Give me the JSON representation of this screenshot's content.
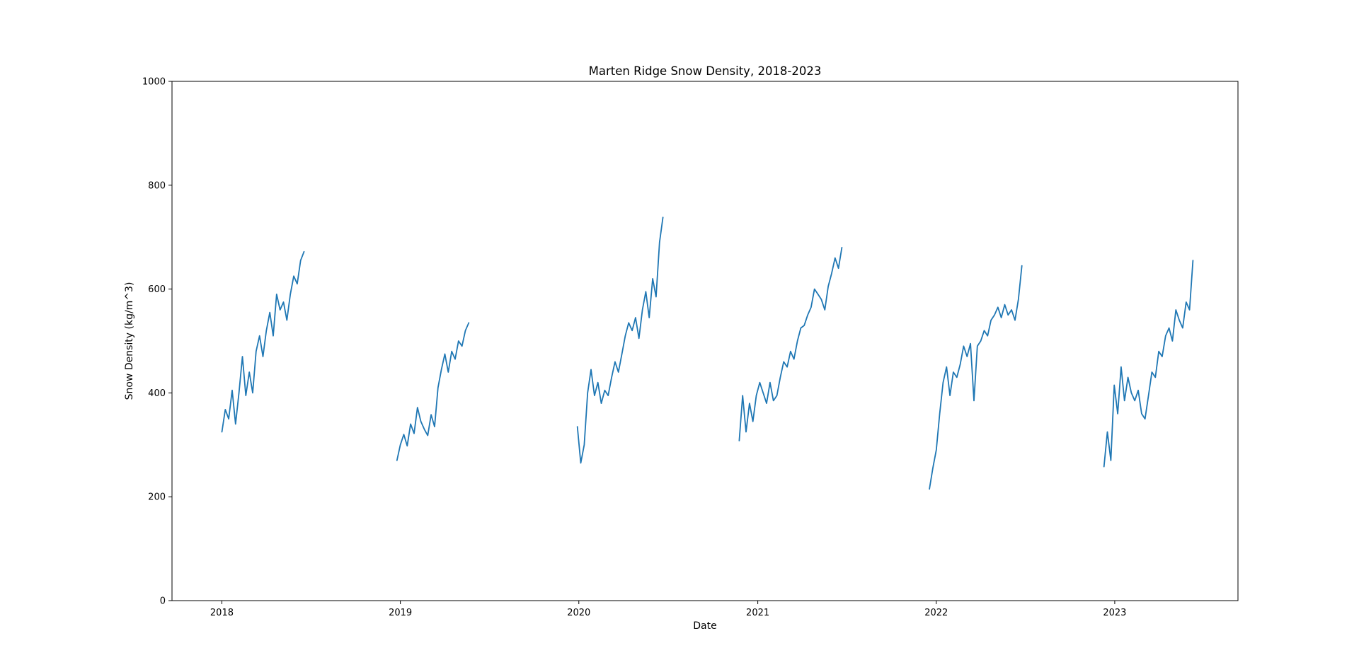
{
  "chart_data": {
    "type": "line",
    "title": "Marten Ridge Snow Density, 2018-2023",
    "xlabel": "Date",
    "ylabel": "Snow Density (kg/m^3)",
    "x_axis_kind": "date",
    "xlim": [
      "2017-09-21",
      "2023-09-10"
    ],
    "ylim": [
      0,
      1000
    ],
    "yticks": [
      0,
      200,
      400,
      600,
      800,
      1000
    ],
    "xticks": [
      {
        "date": "2018-01-01",
        "label": "2018"
      },
      {
        "date": "2019-01-01",
        "label": "2019"
      },
      {
        "date": "2020-01-01",
        "label": "2020"
      },
      {
        "date": "2021-01-01",
        "label": "2021"
      },
      {
        "date": "2022-01-01",
        "label": "2022"
      },
      {
        "date": "2023-01-01",
        "label": "2023"
      }
    ],
    "grid": false,
    "legend": "none",
    "color": "#1f77b4",
    "series": [
      {
        "x": [
          "2018-01-01",
          "2018-01-08",
          "2018-01-15",
          "2018-01-22",
          "2018-01-29",
          "2018-02-05",
          "2018-02-12",
          "2018-02-19",
          "2018-02-26",
          "2018-03-05",
          "2018-03-12",
          "2018-03-19",
          "2018-03-26",
          "2018-04-02",
          "2018-04-09",
          "2018-04-16",
          "2018-04-23",
          "2018-04-30",
          "2018-05-07",
          "2018-05-14",
          "2018-05-21",
          "2018-05-28",
          "2018-06-04",
          "2018-06-11",
          "2018-06-18"
        ],
        "y": [
          325,
          368,
          350,
          405,
          340,
          400,
          470,
          395,
          440,
          400,
          480,
          510,
          470,
          520,
          555,
          510,
          590,
          560,
          575,
          540,
          590,
          625,
          610,
          655,
          672
        ]
      },
      {
        "x": [
          "2018-12-25",
          "2019-01-01",
          "2019-01-08",
          "2019-01-15",
          "2019-01-22",
          "2019-01-29",
          "2019-02-05",
          "2019-02-12",
          "2019-02-19",
          "2019-02-26",
          "2019-03-05",
          "2019-03-12",
          "2019-03-19",
          "2019-03-26",
          "2019-04-02",
          "2019-04-09",
          "2019-04-16",
          "2019-04-23",
          "2019-04-30",
          "2019-05-07",
          "2019-05-14",
          "2019-05-21"
        ],
        "y": [
          270,
          300,
          320,
          298,
          340,
          322,
          372,
          345,
          330,
          318,
          358,
          335,
          410,
          445,
          475,
          440,
          480,
          465,
          500,
          490,
          520,
          535
        ]
      },
      {
        "x": [
          "2019-12-29",
          "2020-01-05",
          "2020-01-12",
          "2020-01-19",
          "2020-01-26",
          "2020-02-02",
          "2020-02-09",
          "2020-02-16",
          "2020-02-23",
          "2020-03-01",
          "2020-03-08",
          "2020-03-15",
          "2020-03-22",
          "2020-03-29",
          "2020-04-05",
          "2020-04-12",
          "2020-04-19",
          "2020-04-26",
          "2020-05-03",
          "2020-05-10",
          "2020-05-17",
          "2020-05-24",
          "2020-05-31",
          "2020-06-07",
          "2020-06-14",
          "2020-06-21"
        ],
        "y": [
          335,
          265,
          300,
          400,
          445,
          395,
          420,
          380,
          405,
          395,
          430,
          460,
          440,
          475,
          510,
          535,
          520,
          545,
          505,
          560,
          595,
          545,
          620,
          585,
          690,
          738
        ]
      },
      {
        "x": [
          "2020-11-24",
          "2020-12-01",
          "2020-12-08",
          "2020-12-15",
          "2020-12-22",
          "2020-12-29",
          "2021-01-05",
          "2021-01-12",
          "2021-01-19",
          "2021-01-26",
          "2021-02-02",
          "2021-02-09",
          "2021-02-16",
          "2021-02-23",
          "2021-03-02",
          "2021-03-09",
          "2021-03-16",
          "2021-03-23",
          "2021-03-30",
          "2021-04-06",
          "2021-04-13",
          "2021-04-20",
          "2021-04-27",
          "2021-05-04",
          "2021-05-11",
          "2021-05-18",
          "2021-05-25",
          "2021-06-01",
          "2021-06-08",
          "2021-06-15",
          "2021-06-22"
        ],
        "y": [
          308,
          395,
          325,
          380,
          345,
          395,
          420,
          400,
          380,
          420,
          385,
          395,
          430,
          460,
          450,
          480,
          465,
          500,
          525,
          530,
          550,
          565,
          600,
          590,
          580,
          560,
          605,
          630,
          660,
          640,
          680
        ]
      },
      {
        "x": [
          "2021-12-18",
          "2021-12-25",
          "2022-01-01",
          "2022-01-08",
          "2022-01-15",
          "2022-01-22",
          "2022-01-29",
          "2022-02-05",
          "2022-02-12",
          "2022-02-19",
          "2022-02-26",
          "2022-03-05",
          "2022-03-12",
          "2022-03-19",
          "2022-03-26",
          "2022-04-02",
          "2022-04-09",
          "2022-04-16",
          "2022-04-23",
          "2022-04-30",
          "2022-05-07",
          "2022-05-14",
          "2022-05-21",
          "2022-05-28",
          "2022-06-04",
          "2022-06-11",
          "2022-06-18",
          "2022-06-25"
        ],
        "y": [
          215,
          255,
          290,
          360,
          420,
          450,
          395,
          440,
          430,
          455,
          490,
          470,
          495,
          385,
          490,
          500,
          520,
          510,
          540,
          550,
          565,
          545,
          570,
          550,
          560,
          540,
          580,
          645
        ]
      },
      {
        "x": [
          "2022-12-10",
          "2022-12-17",
          "2022-12-24",
          "2022-12-31",
          "2023-01-07",
          "2023-01-14",
          "2023-01-21",
          "2023-01-28",
          "2023-02-04",
          "2023-02-11",
          "2023-02-18",
          "2023-02-25",
          "2023-03-04",
          "2023-03-11",
          "2023-03-18",
          "2023-03-25",
          "2023-04-01",
          "2023-04-08",
          "2023-04-15",
          "2023-04-22",
          "2023-04-29",
          "2023-05-06",
          "2023-05-13",
          "2023-05-20",
          "2023-05-27",
          "2023-06-03",
          "2023-06-10"
        ],
        "y": [
          258,
          325,
          270,
          415,
          360,
          450,
          385,
          430,
          400,
          385,
          405,
          360,
          350,
          395,
          440,
          430,
          480,
          470,
          510,
          525,
          500,
          560,
          540,
          525,
          575,
          560,
          655
        ]
      }
    ]
  }
}
